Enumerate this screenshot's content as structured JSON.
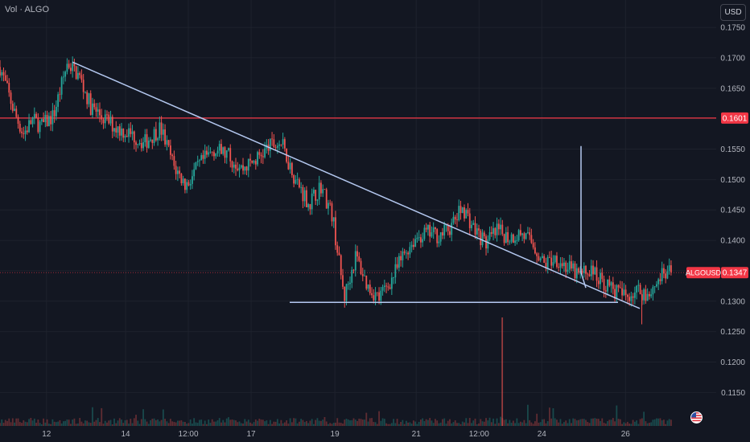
{
  "indicator_label": "Vol · ALGO",
  "currency_button": "USD",
  "colors": {
    "background": "#131722",
    "grid": "#1e222d",
    "up": "#26a69a",
    "down": "#ef5350",
    "trendline": "#b4c8f0",
    "resistance": "#f23645",
    "axis_text": "#b2b5be",
    "price_badge": "#f23645"
  },
  "chart_data": {
    "type": "candlestick",
    "symbol": "ALGOUSD",
    "x_tick_labels": [
      "12",
      "14",
      "12:00",
      "17",
      "19",
      "21",
      "12:00",
      "24",
      "26"
    ],
    "y_tick_labels": [
      "0.1750",
      "0.1700",
      "0.1650",
      "0.1550",
      "0.1500",
      "0.1450",
      "0.1400",
      "0.1300",
      "0.1250",
      "0.1200",
      "0.1150"
    ],
    "ylim": [
      0.1095,
      0.1795
    ],
    "resistance": {
      "value": 0.1601,
      "label": "0.1601"
    },
    "last_price": {
      "symbol_label": "ALGOUSD",
      "value": 0.1347,
      "label": "0.1347"
    },
    "trendline_points": [
      [
        11.95,
        0.1693
      ],
      [
        19.5,
        0.1298
      ]
    ],
    "price_path": [
      [
        0.0,
        0.1685
      ],
      [
        0.6,
        0.1612
      ],
      [
        1.0,
        0.1575
      ],
      [
        1.4,
        0.1598
      ],
      [
        1.8,
        0.1588
      ],
      [
        2.3,
        0.1605
      ],
      [
        2.9,
        0.1692
      ],
      [
        3.4,
        0.167
      ],
      [
        3.9,
        0.162
      ],
      [
        4.4,
        0.1602
      ],
      [
        5.0,
        0.1585
      ],
      [
        5.6,
        0.1575
      ],
      [
        6.2,
        0.156
      ],
      [
        6.9,
        0.1585
      ],
      [
        7.5,
        0.152
      ],
      [
        8.0,
        0.149
      ],
      [
        8.6,
        0.1525
      ],
      [
        9.2,
        0.155
      ],
      [
        9.8,
        0.154
      ],
      [
        10.4,
        0.1518
      ],
      [
        11.0,
        0.1532
      ],
      [
        11.6,
        0.1555
      ],
      [
        12.1,
        0.156
      ],
      [
        12.7,
        0.15
      ],
      [
        13.3,
        0.146
      ],
      [
        13.8,
        0.149
      ],
      [
        14.3,
        0.144
      ],
      [
        14.8,
        0.1305
      ],
      [
        15.3,
        0.1375
      ],
      [
        15.8,
        0.1325
      ],
      [
        16.3,
        0.1305
      ],
      [
        16.9,
        0.134
      ],
      [
        17.4,
        0.138
      ],
      [
        17.9,
        0.1405
      ],
      [
        18.4,
        0.1412
      ],
      [
        18.9,
        0.1408
      ],
      [
        19.4,
        0.1422
      ],
      [
        19.9,
        0.1455
      ],
      [
        20.4,
        0.1418
      ],
      [
        20.9,
        0.1395
      ],
      [
        21.4,
        0.1415
      ],
      [
        21.9,
        0.1405
      ],
      [
        22.4,
        0.1412
      ],
      [
        22.9,
        0.1395
      ],
      [
        23.4,
        0.136
      ],
      [
        23.9,
        0.1372
      ],
      [
        24.4,
        0.1355
      ],
      [
        24.9,
        0.1342
      ],
      [
        25.4,
        0.1352
      ],
      [
        25.9,
        0.1332
      ],
      [
        26.4,
        0.1318
      ],
      [
        26.9,
        0.1308
      ],
      [
        27.4,
        0.1318
      ],
      [
        27.9,
        0.1312
      ],
      [
        28.4,
        0.134
      ],
      [
        28.9,
        0.1347
      ]
    ],
    "x_range": [
      0,
      30.8
    ]
  }
}
